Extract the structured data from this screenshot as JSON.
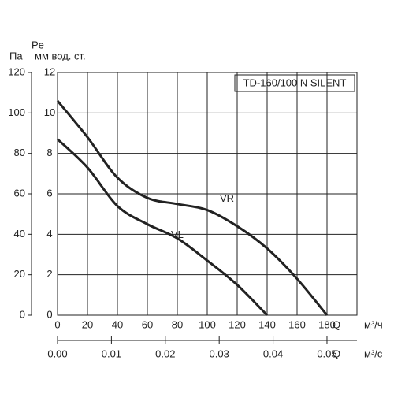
{
  "chart_data": {
    "type": "line",
    "title": "TD-160/100 N SILENT",
    "y_label": "Pe",
    "y_unit": "мм вод. ст.",
    "y2_unit": "Па",
    "x_label": "Q",
    "x_unit": "м³/ч",
    "x2_label": "Q",
    "x2_unit": "м³/с",
    "x": [
      0,
      20,
      40,
      60,
      80,
      100,
      120,
      140,
      160,
      180
    ],
    "series": [
      {
        "name": "VR",
        "color": "#222222",
        "values": [
          10.6,
          8.8,
          6.8,
          5.8,
          5.5,
          5.2,
          4.4,
          3.3,
          1.8,
          0
        ]
      },
      {
        "name": "VL",
        "color": "#222222",
        "values": [
          8.7,
          7.3,
          5.4,
          4.5,
          3.8,
          2.7,
          1.5,
          0,
          null,
          null
        ]
      }
    ],
    "xlim": [
      0,
      200
    ],
    "xticks": [
      0,
      20,
      40,
      60,
      80,
      100,
      120,
      140,
      160,
      180
    ],
    "x2lim": [
      0,
      0.05556
    ],
    "x2ticks": [
      {
        "value": 0,
        "label": "0.00"
      },
      0.01,
      0.02,
      0.03,
      0.04,
      0.05
    ],
    "ylim": [
      0,
      12
    ],
    "yticks": [
      0,
      2,
      4,
      6,
      8,
      10,
      12
    ],
    "y2lim": [
      0,
      120
    ],
    "y2ticks": [
      0,
      20,
      40,
      60,
      80,
      100,
      120
    ],
    "grid": true
  }
}
